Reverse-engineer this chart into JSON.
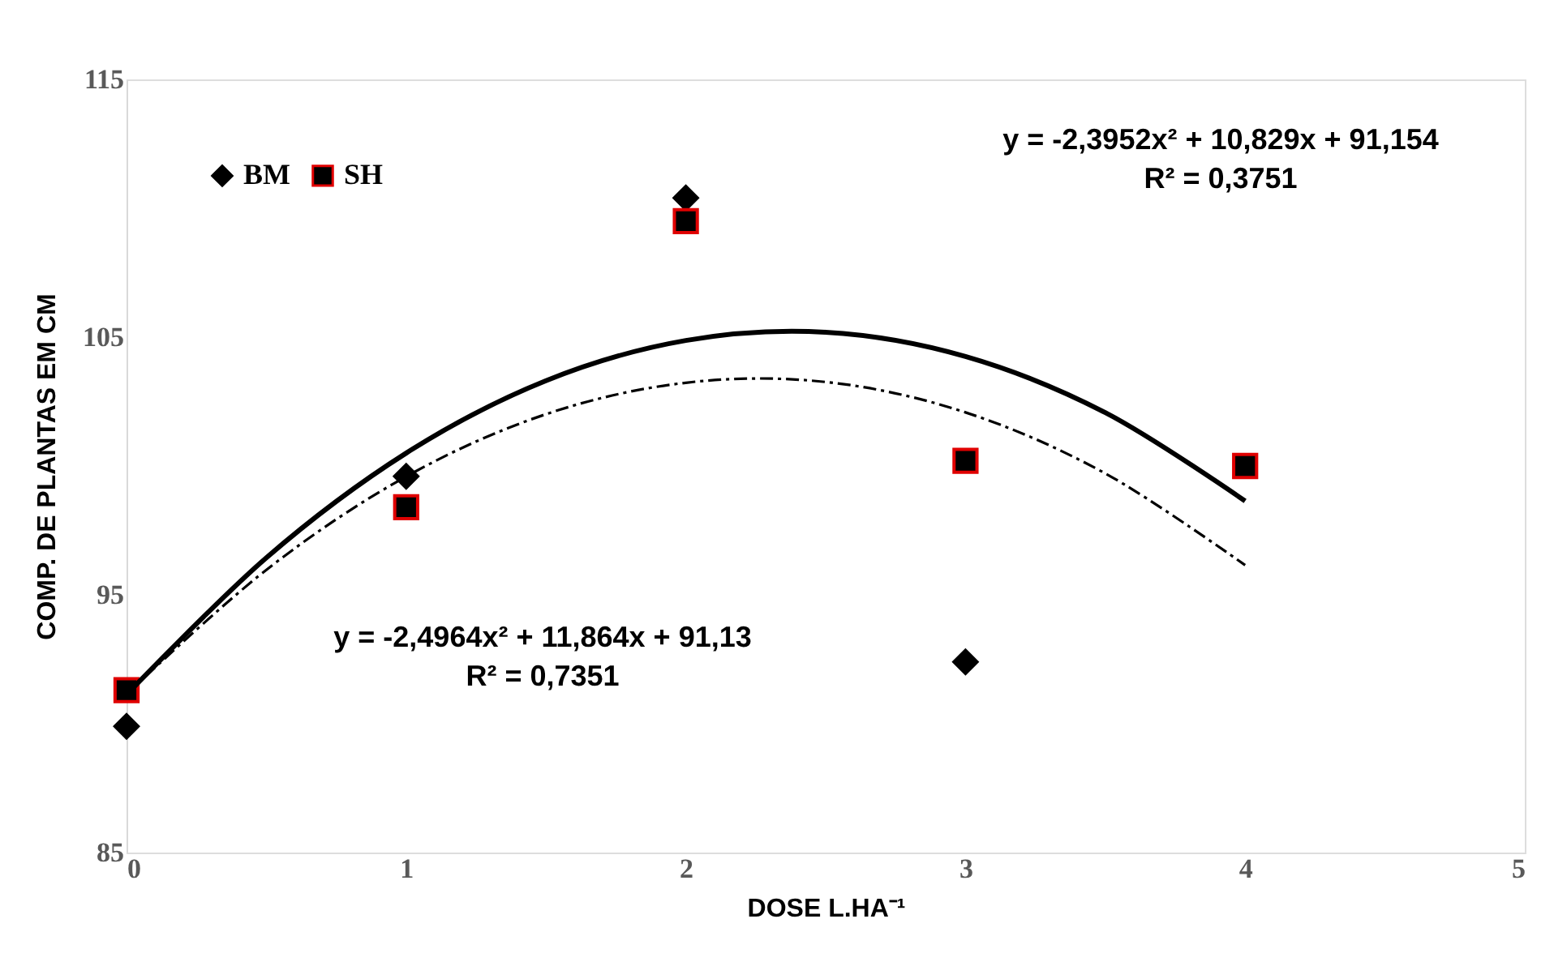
{
  "chart_data": {
    "type": "scatter",
    "xlabel": "DOSE L.HA⁻¹",
    "ylabel": "COMP. DE PLANTAS EM CM",
    "x": [
      0,
      1,
      2,
      3,
      4
    ],
    "series": [
      {
        "name": "BM",
        "color": "#000000",
        "marker": "diamond",
        "values": [
          89.9,
          99.6,
          110.4,
          92.4,
          null
        ]
      },
      {
        "name": "SH",
        "color": "#000000",
        "marker": "square",
        "values": [
          91.3,
          98.4,
          109.5,
          100.2,
          100.0
        ]
      },
      {
        "type": "line",
        "color": "#000000",
        "line_style": "dashed",
        "x": [
          0,
          0.5,
          1,
          1.5,
          2,
          2.5,
          3,
          3.5,
          4
        ],
        "values": [
          91.15,
          95.97,
          99.59,
          102.01,
          103.23,
          103.26,
          102.08,
          99.71,
          96.15
        ]
      },
      {
        "type": "line",
        "color": "#000000",
        "line_style": "solid",
        "x": [
          0,
          0.5,
          1,
          1.5,
          2,
          2.5,
          3,
          3.5,
          4
        ],
        "values": [
          91.13,
          96.44,
          100.5,
          103.31,
          104.87,
          105.19,
          104.25,
          102.07,
          98.64
        ]
      }
    ],
    "annotations": [
      "y = -2,3952x² + 10,829x + 91,154",
      "R² = 0,3751",
      "y = -2,4964x² + 11,864x + 91,13",
      "R² = 0,7351"
    ],
    "xlim": [
      0,
      5
    ],
    "xticks": [
      0,
      1,
      2,
      3,
      4,
      5
    ],
    "ylim": [
      85,
      115
    ],
    "yticks": [
      85,
      95,
      105,
      115
    ],
    "grid": false,
    "legend": "top left"
  }
}
